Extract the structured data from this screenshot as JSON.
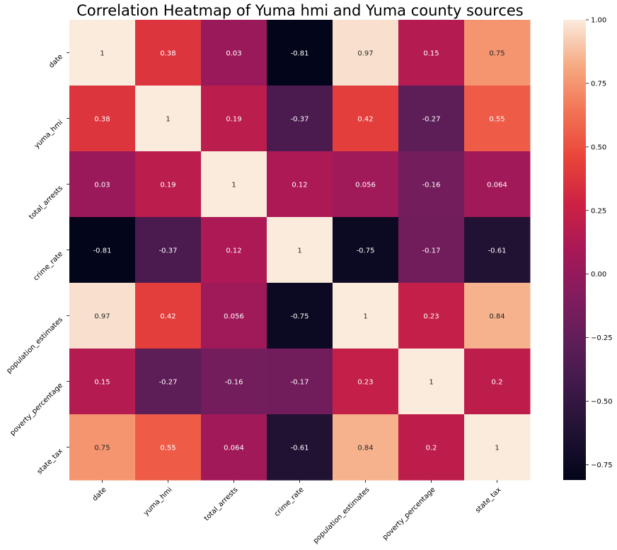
{
  "chart_data": {
    "type": "heatmap",
    "title": "Correlation Heatmap of Yuma hmi and Yuma county sources",
    "x_labels": [
      "date",
      "yuma_hmi",
      "total_arrests",
      "crime_rate",
      "population_estimates",
      "poverty_percentage",
      "state_tax"
    ],
    "y_labels": [
      "date",
      "yuma_hmi",
      "total_arrests",
      "crime_rate",
      "population_estimates",
      "poverty_percentage",
      "state_tax"
    ],
    "values": [
      [
        1,
        0.38,
        0.03,
        -0.81,
        0.97,
        0.15,
        0.75
      ],
      [
        0.38,
        1,
        0.19,
        -0.37,
        0.42,
        -0.27,
        0.55
      ],
      [
        0.03,
        0.19,
        1,
        0.12,
        0.056,
        -0.16,
        0.064
      ],
      [
        -0.81,
        -0.37,
        0.12,
        1,
        -0.75,
        -0.17,
        -0.61
      ],
      [
        0.97,
        0.42,
        0.056,
        -0.75,
        1,
        0.23,
        0.84
      ],
      [
        0.15,
        -0.27,
        -0.16,
        -0.17,
        0.23,
        1,
        0.2
      ],
      [
        0.75,
        0.55,
        0.064,
        -0.61,
        0.84,
        0.2,
        1
      ]
    ],
    "value_labels": [
      [
        "1",
        "0.38",
        "0.03",
        "-0.81",
        "0.97",
        "0.15",
        "0.75"
      ],
      [
        "0.38",
        "1",
        "0.19",
        "-0.37",
        "0.42",
        "-0.27",
        "0.55"
      ],
      [
        "0.03",
        "0.19",
        "1",
        "0.12",
        "0.056",
        "-0.16",
        "0.064"
      ],
      [
        "-0.81",
        "-0.37",
        "0.12",
        "1",
        "-0.75",
        "-0.17",
        "-0.61"
      ],
      [
        "0.97",
        "0.42",
        "0.056",
        "-0.75",
        "1",
        "0.23",
        "0.84"
      ],
      [
        "0.15",
        "-0.27",
        "-0.16",
        "-0.17",
        "0.23",
        "1",
        "0.2"
      ],
      [
        "0.75",
        "0.55",
        "0.064",
        "-0.61",
        "0.84",
        "0.2",
        "1"
      ]
    ],
    "colorbar": {
      "range": [
        -0.81,
        1.0
      ],
      "ticks": [
        1.0,
        0.75,
        0.5,
        0.25,
        0.0,
        -0.25,
        -0.5,
        -0.75
      ],
      "tick_labels": [
        "1.00",
        "0.75",
        "0.50",
        "0.25",
        "0.00",
        "−0.25",
        "−0.50",
        "−0.75"
      ]
    },
    "colormap": "rocket",
    "grid": false,
    "legend": "colorbar-right",
    "x_tick_rotation": "45deg",
    "y_tick_rotation": "45deg"
  }
}
